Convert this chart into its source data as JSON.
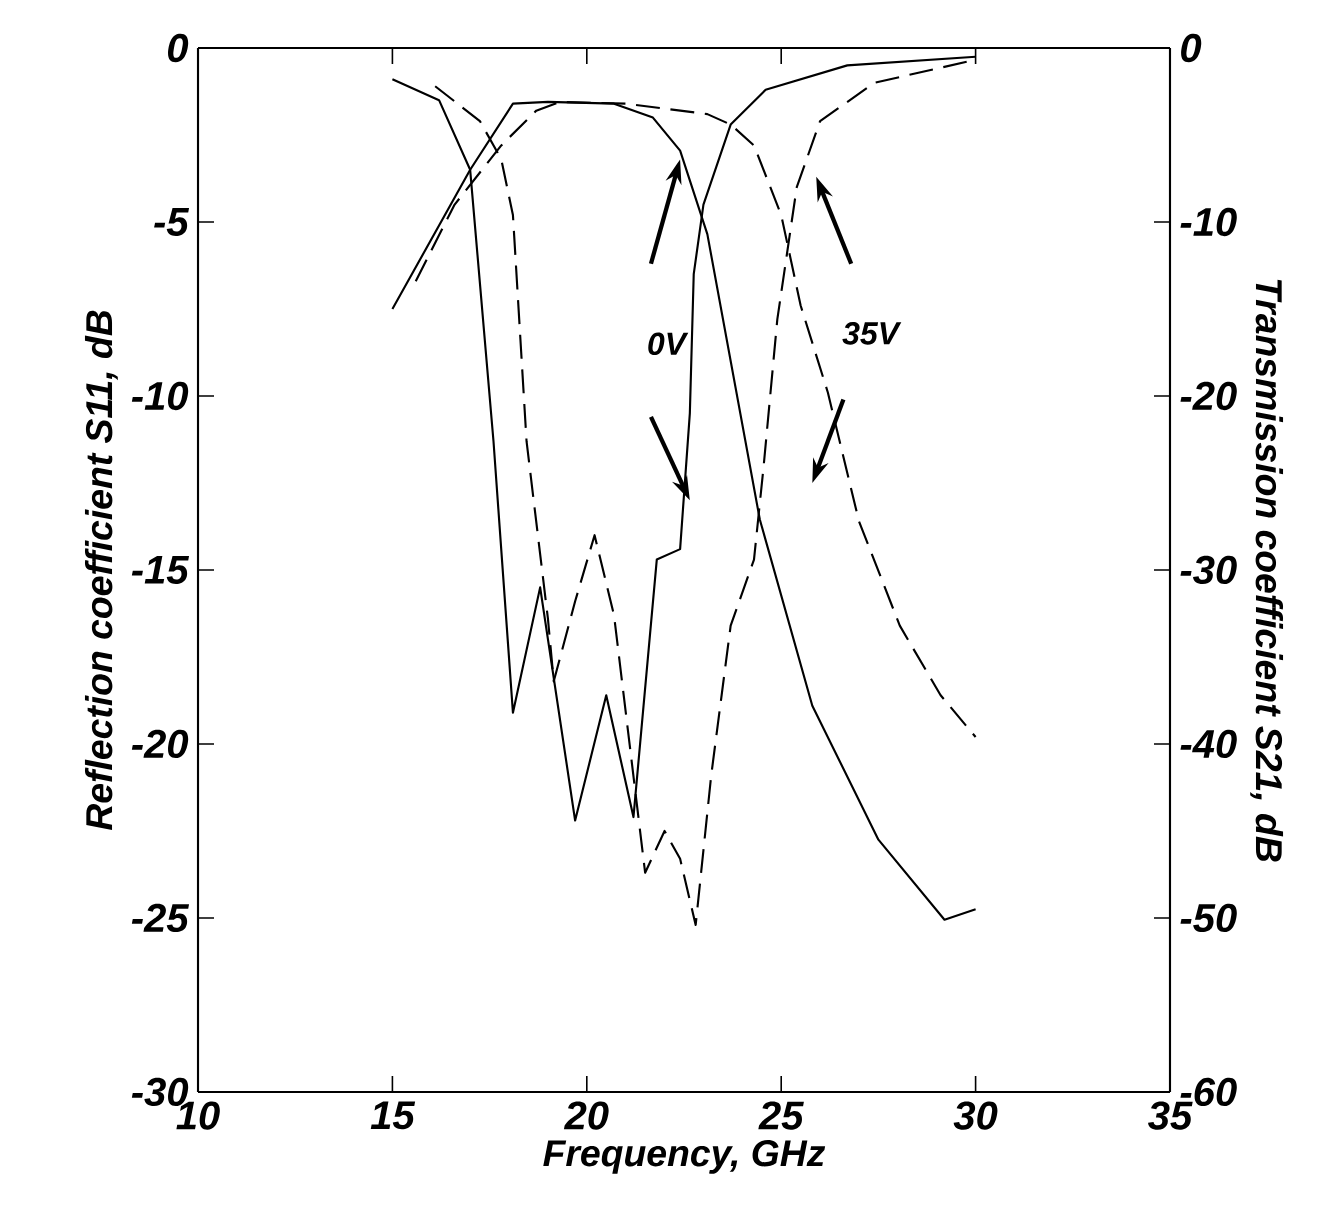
{
  "chart_data": {
    "type": "line",
    "xlabel": "Frequency, GHz",
    "ylabel": "Reflection coefficient S11, dB",
    "y2label": "Transmission coefficient S21, dB",
    "xlim": [
      10,
      35
    ],
    "xticks": [
      10,
      15,
      20,
      25,
      30,
      35
    ],
    "ylim": [
      -30,
      0
    ],
    "yticks": [
      -30,
      -25,
      -20,
      -15,
      -10,
      -5,
      0
    ],
    "y2lim": [
      -60,
      0
    ],
    "y2ticks": [
      -60,
      -50,
      -40,
      -30,
      -20,
      -10,
      0
    ],
    "annotations": [
      "0V",
      "35V"
    ],
    "grid": false,
    "marker": "none",
    "series": [
      {
        "color": "#000000",
        "line_style": "solid",
        "x": [
          15,
          16.2,
          17.0,
          17.6,
          18.1,
          18.8,
          19.7,
          20.5,
          21.2,
          21.8,
          22.4,
          22.65,
          22.75,
          23.0,
          23.7,
          24.6,
          26.7,
          30
        ],
        "values": [
          -0.9,
          -1.5,
          -3.5,
          -11.3,
          -19.1,
          -15.5,
          -22.2,
          -18.6,
          -22.1,
          -14.7,
          -14.4,
          -10.5,
          -6.5,
          -4.5,
          -2.2,
          -1.2,
          -0.5,
          -0.25
        ]
      },
      {
        "color": "#000000",
        "line_style": "dashed",
        "x": [
          16.1,
          17.25,
          17.8,
          18.1,
          18.45,
          19.0,
          19.15,
          19.7,
          20.2,
          20.7,
          21.5,
          22.0,
          22.4,
          22.8,
          23.2,
          23.7,
          24.3,
          24.55,
          24.9,
          25.4,
          26.0,
          27.4,
          29.95
        ],
        "values": [
          -1.1,
          -2.1,
          -3.2,
          -4.8,
          -11.3,
          -16.4,
          -18.2,
          -15.9,
          -14.0,
          -16.3,
          -23.7,
          -22.5,
          -23.3,
          -25.2,
          -20.9,
          -16.6,
          -14.7,
          -12.0,
          -7.8,
          -4.0,
          -2.1,
          -1.0,
          -0.35
        ]
      },
      {
        "color": "#000000",
        "line_style": "solid",
        "axis": "y2",
        "x": [
          15,
          17.0,
          18.1,
          19.0,
          20.7,
          21.7,
          22.4,
          23.1,
          24.45,
          25.8,
          27.5,
          29.2,
          30
        ],
        "values": [
          -15,
          -7,
          -3.2,
          -3.1,
          -3.2,
          -4.0,
          -5.9,
          -10.7,
          -27.1,
          -37.8,
          -45.5,
          -50.1,
          -49.5
        ]
      },
      {
        "color": "#000000",
        "line_style": "dashed",
        "axis": "y2",
        "x": [
          15.6,
          16.6,
          17.8,
          18.7,
          19.3,
          21,
          23.1,
          23.7,
          24.3,
          25.0,
          25.5,
          26.2,
          27.0,
          28.05,
          29.1,
          30
        ],
        "values": [
          -13.4,
          -9.0,
          -5.6,
          -3.6,
          -3.1,
          -3.2,
          -3.8,
          -4.4,
          -5.6,
          -9.6,
          -14.8,
          -19.8,
          -27.2,
          -33.2,
          -37.2,
          -39.6
        ]
      }
    ]
  }
}
